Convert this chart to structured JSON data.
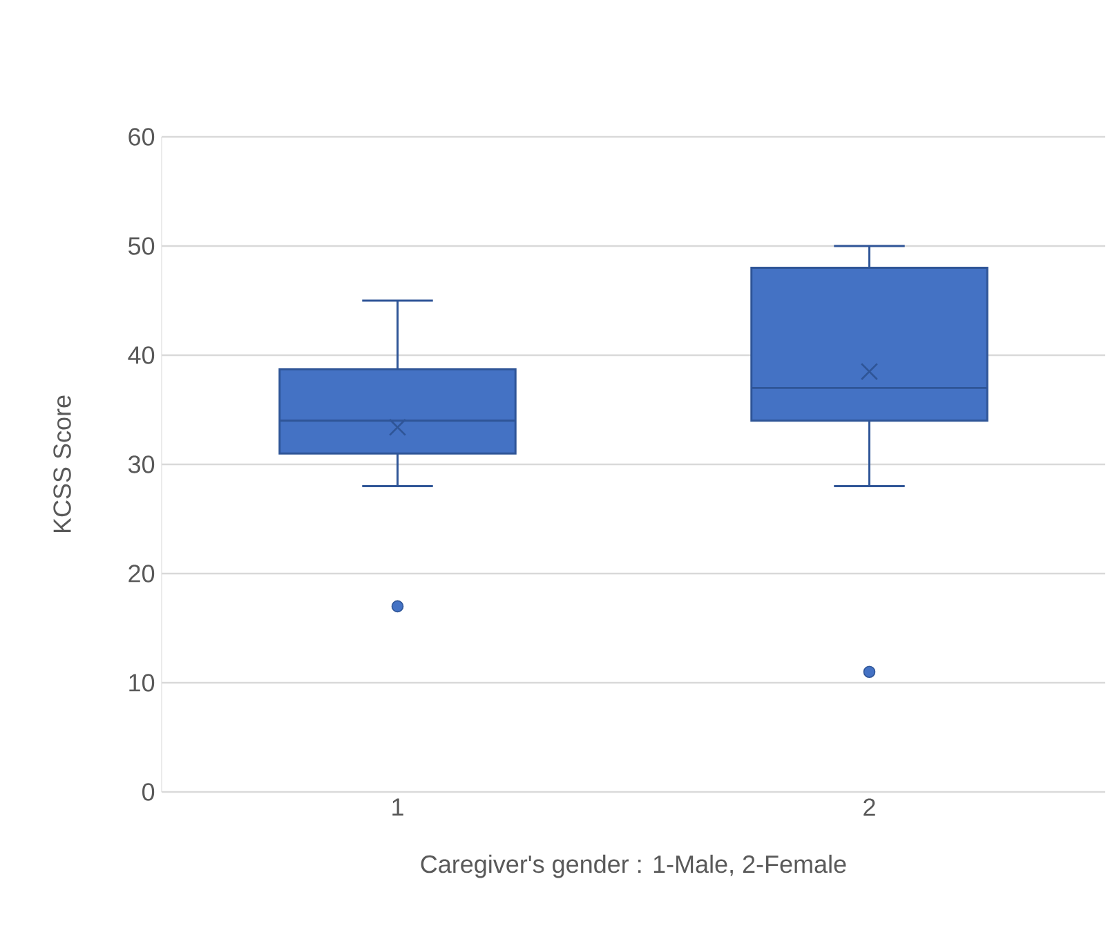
{
  "chart_data": {
    "type": "box",
    "xlabel": "Caregiver's gender : 1-Male, 2-Female",
    "ylabel": "KCSS Score",
    "categories": [
      "1",
      "2"
    ],
    "ylim": [
      0,
      60
    ],
    "yticks": [
      0,
      10,
      20,
      30,
      40,
      50,
      60
    ],
    "grid": "y",
    "color": "#4472c4",
    "boxes": [
      {
        "low": 28,
        "q1": 31,
        "median": 34,
        "q3": 38.7,
        "high": 45,
        "mean": 33.4,
        "outliers": [
          17
        ]
      },
      {
        "low": 28,
        "q1": 34,
        "median": 37,
        "q3": 48,
        "high": 50,
        "mean": 38.5,
        "outliers": [
          11
        ]
      }
    ]
  }
}
